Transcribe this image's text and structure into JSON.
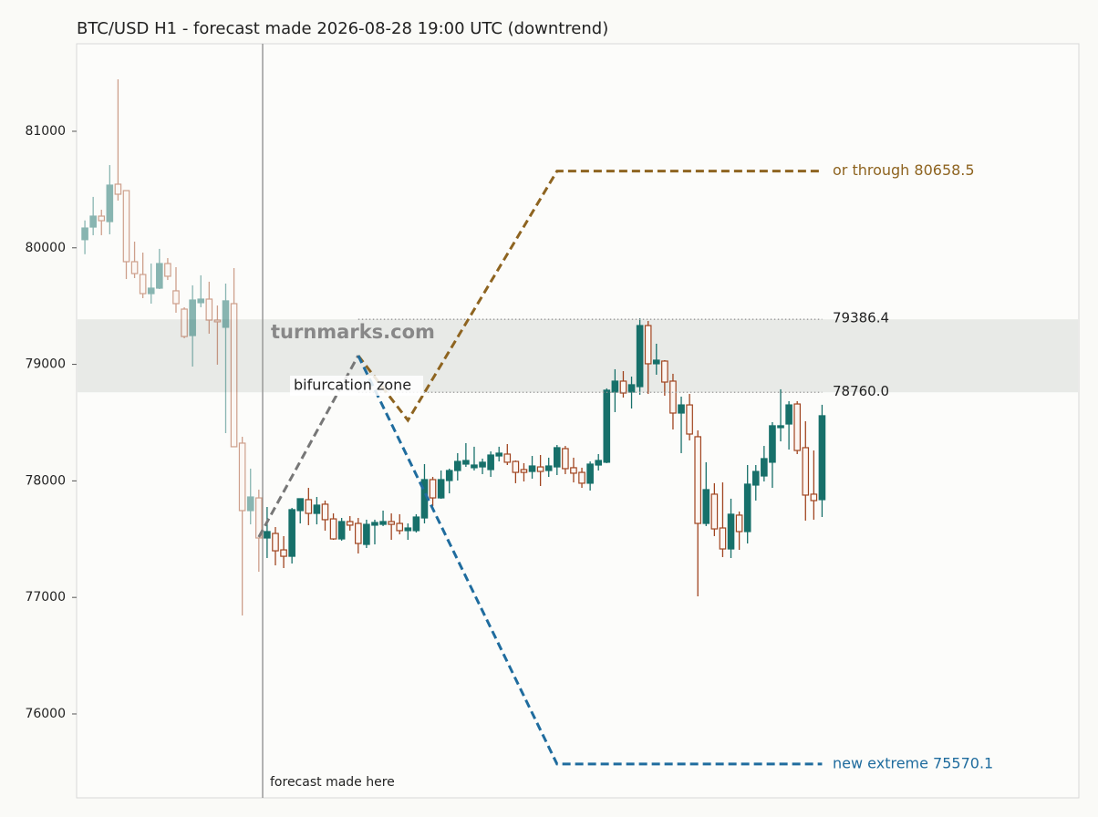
{
  "chart_data": {
    "type": "candlestick",
    "title": "BTC/USD H1 - forecast made 2026-08-28 19:00 UTC (downtrend)",
    "categories": [
      null,
      null,
      null,
      null,
      null,
      null,
      null,
      null,
      null,
      null,
      null,
      null,
      null,
      null,
      null,
      null,
      null,
      null,
      null,
      null,
      null,
      null,
      null,
      null,
      null,
      null,
      null,
      null,
      null,
      null,
      null,
      null,
      null,
      null,
      null,
      null,
      null,
      null,
      null,
      null,
      null,
      null,
      null,
      null,
      null,
      null,
      null,
      null,
      null,
      null,
      null,
      null,
      null,
      null,
      null,
      null,
      null,
      null,
      null,
      null,
      null,
      null,
      null,
      null,
      null,
      null,
      null,
      null,
      null,
      null,
      null,
      null,
      null,
      null,
      null,
      null,
      null,
      null,
      null,
      null,
      null,
      null,
      null,
      null,
      null,
      null,
      null,
      null,
      null,
      null
    ],
    "open": [
      80070,
      80178,
      80272,
      80225,
      80546,
      80491,
      79881,
      79771,
      79607,
      79654,
      79865,
      79631,
      79474,
      79247,
      79529,
      79560,
      79380,
      79318,
      79521,
      78324,
      77745,
      77854,
      77510,
      77549,
      77408,
      77353,
      77745,
      77839,
      77721,
      77800,
      77674,
      77502,
      77651,
      77635,
      77455,
      77620,
      77627,
      77651,
      77635,
      77573,
      77573,
      77682,
      78011,
      77854,
      78003,
      78089,
      78144,
      78113,
      78120,
      78097,
      78214,
      78230,
      78167,
      78097,
      78081,
      78120,
      78089,
      78120,
      78277,
      78113,
      78073,
      77980,
      78136,
      78160,
      78762,
      78856,
      78762,
      78809,
      79333,
      79005,
      79028,
      78856,
      78582,
      78652,
      78379,
      77635,
      77886,
      77596,
      77416,
      77706,
      77565,
      77964,
      78042,
      78160,
      78457,
      78488,
      78660,
      78285,
      77886,
      77839
    ],
    "high": [
      80235,
      80437,
      80327,
      80710,
      81446,
      80491,
      80053,
      79959,
      79865,
      79991,
      79912,
      79834,
      79490,
      79678,
      79764,
      79709,
      79505,
      79693,
      79826,
      78379,
      78105,
      77925,
      77776,
      77604,
      77526,
      77768,
      77847,
      77940,
      77862,
      77831,
      77721,
      77682,
      77698,
      77682,
      77667,
      77667,
      77745,
      77721,
      77714,
      77635,
      77714,
      78144,
      78034,
      78089,
      78105,
      78238,
      78324,
      78293,
      78191,
      78253,
      78293,
      78316,
      78175,
      78152,
      78214,
      78222,
      78199,
      78308,
      78300,
      78199,
      78113,
      78167,
      78230,
      78794,
      78958,
      78942,
      78895,
      79396,
      79372,
      79177,
      79036,
      78919,
      78723,
      78746,
      78433,
      78160,
      77980,
      77987,
      77847,
      77737,
      78136,
      78136,
      78300,
      78504,
      78786,
      78684,
      78684,
      78512,
      78261,
      78653
    ],
    "low": [
      79945,
      80108,
      80108,
      80116,
      80405,
      79732,
      79740,
      79568,
      79521,
      79646,
      79724,
      79443,
      79224,
      78981,
      79490,
      79263,
      78997,
      78410,
      78293,
      76845,
      77627,
      77220,
      77338,
      77275,
      77252,
      77291,
      77635,
      77620,
      77627,
      77573,
      77494,
      77487,
      77573,
      77377,
      77424,
      77455,
      77612,
      77494,
      77541,
      77494,
      77557,
      77635,
      77784,
      77846,
      77893,
      78003,
      78120,
      78089,
      78058,
      78034,
      78167,
      78136,
      77980,
      77995,
      78019,
      77956,
      78034,
      78050,
      78058,
      77987,
      77940,
      77917,
      78089,
      78152,
      78590,
      78715,
      78621,
      78739,
      78746,
      78911,
      78731,
      78441,
      78238,
      78347,
      77009,
      77612,
      77526,
      77346,
      77338,
      77408,
      77463,
      77831,
      77995,
      77940,
      78339,
      78269,
      78230,
      77659,
      77667,
      77690
    ],
    "close": [
      80170,
      80272,
      80233,
      80538,
      80460,
      79881,
      79779,
      79607,
      79654,
      79865,
      79756,
      79521,
      79239,
      79552,
      79560,
      79380,
      79365,
      79545,
      78293,
      77745,
      77862,
      77510,
      77565,
      77400,
      77353,
      77753,
      77847,
      77721,
      77792,
      77667,
      77502,
      77651,
      77620,
      77463,
      77627,
      77643,
      77651,
      77627,
      77573,
      77596,
      77690,
      78011,
      77854,
      78011,
      78089,
      78167,
      78175,
      78136,
      78160,
      78222,
      78238,
      78160,
      78073,
      78073,
      78128,
      78081,
      78128,
      78285,
      78105,
      78066,
      77980,
      78144,
      78175,
      78778,
      78856,
      78754,
      78825,
      79333,
      79005,
      79036,
      78848,
      78582,
      78652,
      78402,
      77635,
      77925,
      77588,
      77416,
      77714,
      77565,
      77972,
      78081,
      78191,
      78473,
      78473,
      78652,
      78261,
      77878,
      77831,
      78559
    ],
    "up_color": "#17706a",
    "down_color": "#a0441f",
    "xlim": [
      -1,
      120
    ],
    "ylim": [
      75280,
      81751
    ],
    "yticks": [
      76000,
      77000,
      78000,
      79000,
      80000,
      81000
    ],
    "zone": {
      "values": [
        79386.4,
        78760
      ],
      "value_labels": [
        "79386.4",
        "78760.0"
      ],
      "color": "#e8eae7"
    },
    "forecast_lines": [
      {
        "color": "#777777",
        "x": [
          21,
          33
        ],
        "values": [
          77518,
          79075
        ]
      },
      {
        "color": "#8e6420",
        "x": [
          33,
          39,
          57,
          89
        ],
        "values": [
          79075,
          78520,
          80658.5,
          80658.5
        ]
      },
      {
        "color": "#1f6c9e",
        "x": [
          33,
          57,
          89
        ],
        "values": [
          79075,
          75570.1,
          75570.1
        ]
      }
    ],
    "annotations": {
      "up_target": "or through 80658.5",
      "down_target": "new extreme 75570.1",
      "zone": "bifurcation zone",
      "forecast": "forecast made here",
      "watermark": "turnmarks.com"
    }
  }
}
